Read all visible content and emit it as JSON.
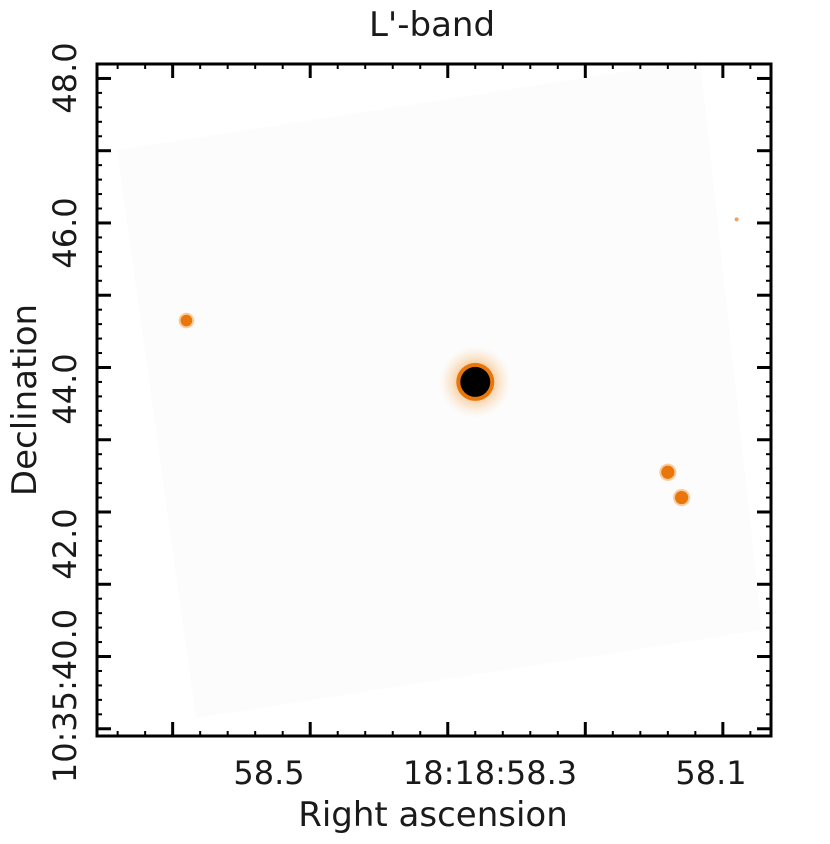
{
  "chart_data": {
    "type": "heatmap",
    "title": "L'-band",
    "xlabel": "Right ascension",
    "ylabel": "Declination",
    "x_ticks": [
      {
        "label": "58.5",
        "value": 58.5
      },
      {
        "label": "18:18:58.3",
        "value": 58.3
      },
      {
        "label": "58.1",
        "value": 58.1
      }
    ],
    "y_ticks": [
      {
        "label": "10:35:40.0",
        "value": 40.0
      },
      {
        "label": "42.0",
        "value": 42.0
      },
      {
        "label": "44.0",
        "value": 44.0
      },
      {
        "label": "46.0",
        "value": 46.0
      },
      {
        "label": "48.0",
        "value": 48.0
      }
    ],
    "xlim": [
      58.555,
      58.065
    ],
    "ylim": [
      38.9,
      48.2
    ],
    "colormap": [
      "#ffffff",
      "#f6a24c",
      "#e8760a",
      "#000000"
    ],
    "sources": [
      {
        "ra": 58.28,
        "dec": 43.8,
        "peak": 1.0
      },
      {
        "ra": 58.14,
        "dec": 42.55,
        "peak": 0.45
      },
      {
        "ra": 58.13,
        "dec": 42.2,
        "peak": 0.45
      },
      {
        "ra": 58.49,
        "dec": 44.65,
        "peak": 0.35
      },
      {
        "ra": 58.09,
        "dec": 46.05,
        "peak": 0.15
      }
    ]
  }
}
